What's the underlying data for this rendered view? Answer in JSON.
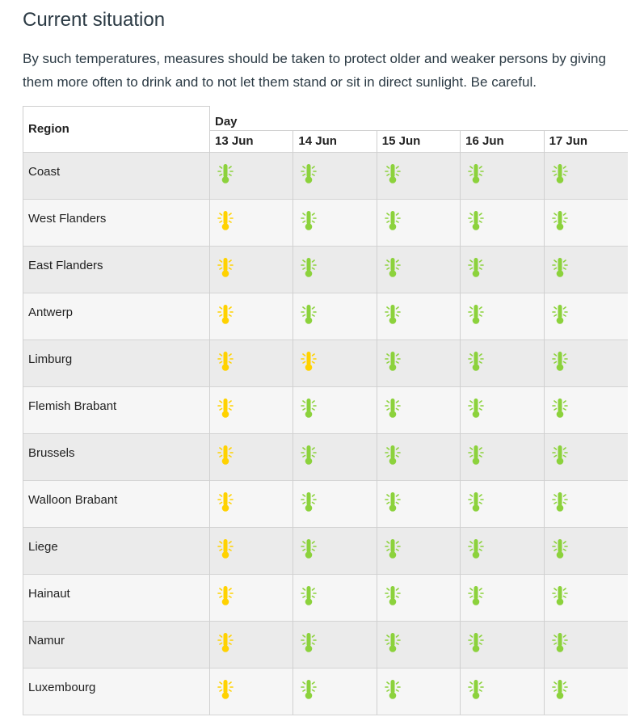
{
  "page": {
    "title": "Current situation",
    "intro": "By such temperatures, measures should be taken to protect older and weaker persons by giving them more often to drink and to not let them stand or sit in direct sunlight. Be careful."
  },
  "table": {
    "region_header": "Region",
    "day_header": "Day",
    "days": [
      "13 Jun",
      "14 Jun",
      "15 Jun",
      "16 Jun",
      "17 Jun"
    ],
    "legend_colors": {
      "green": "#8cd23c",
      "yellow": "#ffd200"
    },
    "icon": "thermometer-icon",
    "rows": [
      {
        "region": "Coast",
        "levels": [
          "green",
          "green",
          "green",
          "green",
          "green"
        ]
      },
      {
        "region": "West Flanders",
        "levels": [
          "yellow",
          "green",
          "green",
          "green",
          "green"
        ]
      },
      {
        "region": "East Flanders",
        "levels": [
          "yellow",
          "green",
          "green",
          "green",
          "green"
        ]
      },
      {
        "region": "Antwerp",
        "levels": [
          "yellow",
          "green",
          "green",
          "green",
          "green"
        ]
      },
      {
        "region": "Limburg",
        "levels": [
          "yellow",
          "yellow",
          "green",
          "green",
          "green"
        ]
      },
      {
        "region": "Flemish Brabant",
        "levels": [
          "yellow",
          "green",
          "green",
          "green",
          "green"
        ]
      },
      {
        "region": "Brussels",
        "levels": [
          "yellow",
          "green",
          "green",
          "green",
          "green"
        ]
      },
      {
        "region": "Walloon Brabant",
        "levels": [
          "yellow",
          "green",
          "green",
          "green",
          "green"
        ]
      },
      {
        "region": "Liege",
        "levels": [
          "yellow",
          "green",
          "green",
          "green",
          "green"
        ]
      },
      {
        "region": "Hainaut",
        "levels": [
          "yellow",
          "green",
          "green",
          "green",
          "green"
        ]
      },
      {
        "region": "Namur",
        "levels": [
          "yellow",
          "green",
          "green",
          "green",
          "green"
        ]
      },
      {
        "region": "Luxembourg",
        "levels": [
          "yellow",
          "green",
          "green",
          "green",
          "green"
        ]
      }
    ]
  }
}
